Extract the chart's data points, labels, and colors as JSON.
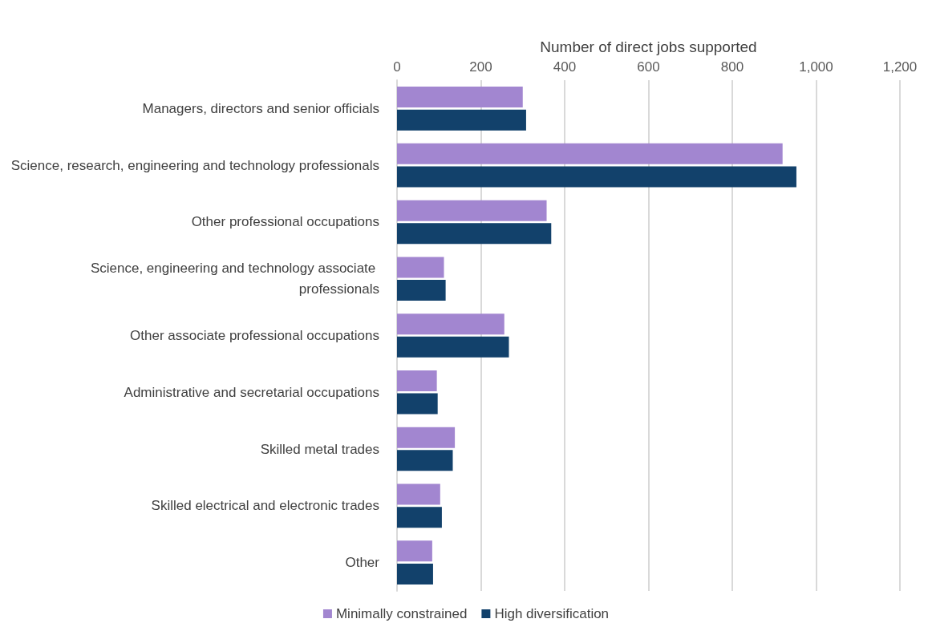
{
  "chart_data": {
    "type": "bar",
    "orientation": "horizontal",
    "xlabel": "Number of direct jobs supported",
    "categories": [
      "Managers, directors and senior officials",
      "Science, research, engineering and technology professionals",
      "Other professional occupations",
      "Science, engineering and technology associate professionals",
      "Other associate professional occupations",
      "Administrative and secretarial occupations",
      "Skilled metal trades",
      "Skilled electrical and electronic trades",
      "Other"
    ],
    "series": [
      {
        "name": "Minimally constrained",
        "color": "#a286d0",
        "values": [
          300,
          920,
          357,
          112,
          256,
          95,
          138,
          103,
          84
        ]
      },
      {
        "name": "High diversification",
        "color": "#12416b",
        "values": [
          308,
          953,
          368,
          116,
          267,
          97,
          133,
          107,
          86
        ]
      }
    ],
    "xlim": [
      0,
      1200
    ],
    "xticks": [
      0,
      200,
      400,
      600,
      800,
      {
        "value": 1000,
        "label": "1,000"
      },
      {
        "value": 1200,
        "label": "1,200"
      }
    ],
    "grid": "x",
    "legend": "bottom"
  }
}
